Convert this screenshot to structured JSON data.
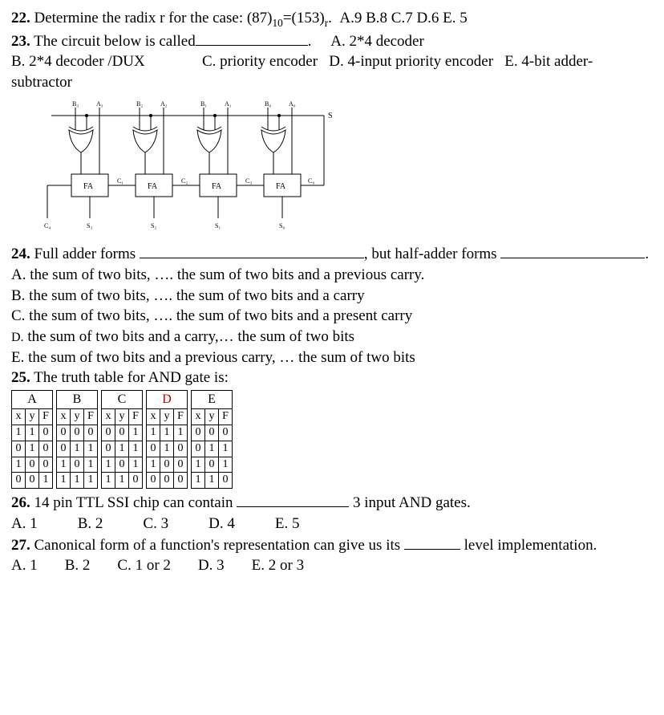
{
  "q22": {
    "num": "22.",
    "text_a": "Determine the radix r for the case: (87)",
    "sub1": "10",
    "text_b": "=(153)",
    "sub2": "r",
    "text_c": ".",
    "opts": "A.9  B.8  C.7  D.6  E. 5"
  },
  "q23": {
    "num": "23.",
    "text_a": "The circuit below is called",
    "dot": ".",
    "optA": "A. 2*4 decoder",
    "optB": "B. 2*4 decoder /DUX",
    "optC": "C. priority encoder",
    "optD": "D. 4-input priority encoder",
    "optE": "E. 4-bit adder-subtractor"
  },
  "circuit": {
    "inputs": [
      "B₃",
      "A₃",
      "B₂",
      "A₂",
      "B₁",
      "A₁",
      "B₀",
      "A₀"
    ],
    "fa_label": "FA",
    "carries": [
      "C₃",
      "C₂",
      "C₁",
      "C₀"
    ],
    "s_label": "S",
    "outputs": [
      "C₄",
      "S₃",
      "S₂",
      "S₁",
      "S₀"
    ],
    "bg": "#ffffff",
    "stroke": "#000000",
    "xor_fill": "#ffffff"
  },
  "q24": {
    "num": "24.",
    "text_a": "Full adder forms ",
    "text_b": ", but half-adder forms ",
    "dot": ".",
    "A": "A. the sum of two bits, ….  the sum of two bits and a previous carry.",
    "B": "B. the sum of two bits, ….  the sum of two bits and a  carry",
    "C": "C.  the sum of two bits, ….  the sum of two bits and a present carry",
    "D_pre": "D.",
    "D": " the sum of two bits and a carry,…  the sum of two bits",
    "E": "E. the sum of two bits and a previous carry, … the sum of two bits"
  },
  "q25": {
    "num": "25.",
    "text": "The truth table for AND gate is:",
    "heads": [
      "A",
      "B",
      "C",
      "D",
      "E"
    ],
    "tables": [
      {
        "h": "A",
        "rows": [
          [
            "x",
            "y",
            "F"
          ],
          [
            "1",
            "1",
            "0"
          ],
          [
            "0",
            "1",
            "0"
          ],
          [
            "1",
            "0",
            "0"
          ],
          [
            "0",
            "0",
            "1"
          ]
        ]
      },
      {
        "h": "B",
        "rows": [
          [
            "x",
            "y",
            "F"
          ],
          [
            "0",
            "0",
            "0"
          ],
          [
            "0",
            "1",
            "1"
          ],
          [
            "1",
            "0",
            "1"
          ],
          [
            "1",
            "1",
            "1"
          ]
        ]
      },
      {
        "h": "C",
        "rows": [
          [
            "x",
            "y",
            "F"
          ],
          [
            "0",
            "0",
            "1"
          ],
          [
            "0",
            "1",
            "1"
          ],
          [
            "1",
            "0",
            "1"
          ],
          [
            "1",
            "1",
            "0"
          ]
        ]
      },
      {
        "h": "D",
        "rows": [
          [
            "x",
            "y",
            "F"
          ],
          [
            "1",
            "1",
            "1"
          ],
          [
            "0",
            "1",
            "0"
          ],
          [
            "1",
            "0",
            "0"
          ],
          [
            "0",
            "0",
            "0"
          ]
        ]
      },
      {
        "h": "E",
        "rows": [
          [
            "x",
            "y",
            "F"
          ],
          [
            "0",
            "0",
            "0"
          ],
          [
            "0",
            "1",
            "1"
          ],
          [
            "1",
            "0",
            "1"
          ],
          [
            "1",
            "1",
            "0"
          ]
        ]
      }
    ]
  },
  "q26": {
    "num": "26.",
    "text_a": "14 pin TTL SSI chip can contain ",
    "text_b": " 3 input AND gates.",
    "opts": [
      "A. 1",
      "B. 2",
      "C. 3",
      "D. 4",
      "E. 5"
    ]
  },
  "q27": {
    "num": "27.",
    "text_a": "Canonical form of a function's representation can give us its ",
    "text_b": " level implementation.",
    "opts": [
      "A. 1",
      "B. 2",
      "C. 1 or 2",
      "D. 3",
      "E. 2 or 3"
    ]
  }
}
